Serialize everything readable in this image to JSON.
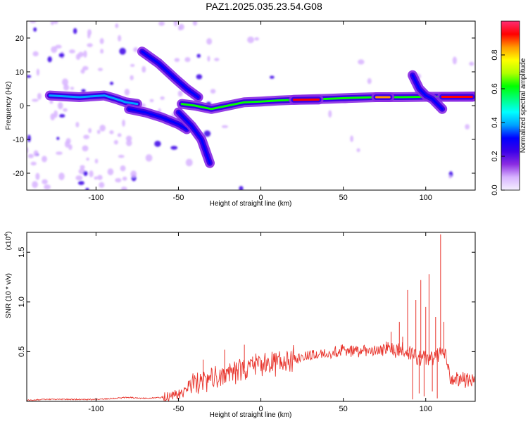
{
  "title": "PAZ1.2025.035.23.54.G08",
  "colors": {
    "snr_line": "#e8342c",
    "colormap": [
      "#f5f0ff",
      "#d7b3ff",
      "#8a2be2",
      "#3a00e8",
      "#0000ff",
      "#00a2ff",
      "#00ffff",
      "#00ff80",
      "#00ff00",
      "#b0ff00",
      "#ffff00",
      "#ff9900",
      "#ff0000",
      "#ff2d74"
    ]
  },
  "chart_data": [
    {
      "type": "heatmap",
      "xlabel": "Height of straight line (km)",
      "ylabel": "Frequency (Hz)",
      "xlim": [
        -142,
        130
      ],
      "ylim": [
        -25,
        25
      ],
      "xticks": [
        -100,
        -50,
        0,
        50,
        100
      ],
      "yticks": [
        -20,
        -10,
        0,
        10,
        20
      ],
      "colorbar": {
        "label": "Normalized spectral amplitude",
        "range": [
          0,
          1
        ],
        "ticks": [
          "0.0",
          "0.2",
          "0.4",
          "0.6",
          "0.8"
        ]
      },
      "ridges": [
        {
          "points": [
            [
              -128,
              3.0
            ],
            [
              -110,
              2.5
            ],
            [
              -95,
              3.0
            ],
            [
              -88,
              2.0
            ],
            [
              -82,
              1.0
            ],
            [
              -75,
              0.5
            ]
          ],
          "amplitude": 0.35
        },
        {
          "points": [
            [
              -80,
              -1.0
            ],
            [
              -70,
              -2.0
            ],
            [
              -60,
              -3.5
            ],
            [
              -50,
              -5.5
            ],
            [
              -45,
              -7.0
            ]
          ],
          "amplitude": 0.3
        },
        {
          "points": [
            [
              -72,
              16.0
            ],
            [
              -62,
              12.5
            ],
            [
              -52,
              8.0
            ],
            [
              -45,
              5.0
            ],
            [
              -38,
              2.5
            ]
          ],
          "amplitude": 0.28
        },
        {
          "points": [
            [
              -50,
              -2.0
            ],
            [
              -42,
              -6.0
            ],
            [
              -36,
              -10.0
            ],
            [
              -31,
              -17.0
            ]
          ],
          "amplitude": 0.28
        },
        {
          "points": [
            [
              -48,
              0.5
            ],
            [
              -40,
              0.0
            ],
            [
              -30,
              -1.0
            ],
            [
              -20,
              0.0
            ],
            [
              -10,
              1.0
            ],
            [
              0,
              1.2
            ],
            [
              10,
              1.5
            ],
            [
              25,
              1.8
            ],
            [
              40,
              2.0
            ],
            [
              55,
              2.3
            ],
            [
              70,
              2.5
            ],
            [
              85,
              2.5
            ],
            [
              100,
              2.6
            ],
            [
              115,
              2.6
            ],
            [
              130,
              2.7
            ]
          ],
          "amplitude": 0.65
        },
        {
          "points": [
            [
              20,
              1.7
            ],
            [
              35,
              1.8
            ]
          ],
          "amplitude": 0.9
        },
        {
          "points": [
            [
              70,
              2.5
            ],
            [
              78,
              2.5
            ]
          ],
          "amplitude": 0.85
        },
        {
          "points": [
            [
              110,
              2.6
            ],
            [
              128,
              2.6
            ]
          ],
          "amplitude": 0.95
        },
        {
          "points": [
            [
              92,
              9.0
            ],
            [
              96,
              5.0
            ],
            [
              100,
              3.0
            ],
            [
              104,
              2.0
            ],
            [
              110,
              -1.0
            ]
          ],
          "amplitude": 0.3
        }
      ]
    },
    {
      "type": "line",
      "xlabel": "Height of straight line (km)",
      "ylabel": "SNR (10 * v/v)",
      "y_multiplier": "(x10",
      "y_multiplier_exp": "4",
      "xlim": [
        -142,
        130
      ],
      "ylim": [
        0,
        1.7
      ],
      "xticks": [
        -100,
        -50,
        0,
        50,
        100
      ],
      "yticks": [
        0.5,
        1.0,
        1.5
      ],
      "yticklabels": [
        "0.5",
        "1.0",
        "1.5"
      ],
      "series": [
        {
          "x": [
            -142,
            -130,
            -120,
            -110,
            -100,
            -90,
            -80,
            -70,
            -60,
            -50,
            -45,
            -40,
            -35,
            -30,
            -25,
            -20,
            -15,
            -10,
            -5,
            0,
            5,
            10,
            15,
            20,
            25,
            30,
            40,
            50,
            60,
            70,
            75,
            80,
            85,
            90,
            95,
            100,
            105,
            108,
            110,
            112,
            115,
            120,
            130
          ],
          "y": [
            0.01,
            0.02,
            0.02,
            0.02,
            0.02,
            0.03,
            0.04,
            0.03,
            0.04,
            0.06,
            0.1,
            0.15,
            0.2,
            0.24,
            0.25,
            0.3,
            0.3,
            0.33,
            0.35,
            0.37,
            0.38,
            0.4,
            0.41,
            0.43,
            0.44,
            0.46,
            0.49,
            0.51,
            0.51,
            0.51,
            0.52,
            0.51,
            0.52,
            0.5,
            0.43,
            0.45,
            0.42,
            0.48,
            0.5,
            0.49,
            0.22,
            0.22,
            0.21
          ]
        }
      ],
      "spikes": [
        [
          -35,
          0.42
        ],
        [
          -22,
          0.52
        ],
        [
          -10,
          0.57
        ],
        [
          -5,
          0.45
        ],
        [
          76,
          0.6
        ],
        [
          79,
          0.7
        ],
        [
          84,
          0.8
        ],
        [
          86,
          0.65
        ],
        [
          89,
          1.12
        ],
        [
          92,
          0.02
        ],
        [
          94,
          1.02
        ],
        [
          96,
          0.08
        ],
        [
          97,
          1.22
        ],
        [
          99,
          0.05
        ],
        [
          100,
          0.95
        ],
        [
          102,
          1.28
        ],
        [
          104,
          0.1
        ],
        [
          106,
          0.85
        ],
        [
          107,
          0.03
        ],
        [
          109,
          1.68
        ],
        [
          111,
          0.8
        ]
      ]
    }
  ]
}
